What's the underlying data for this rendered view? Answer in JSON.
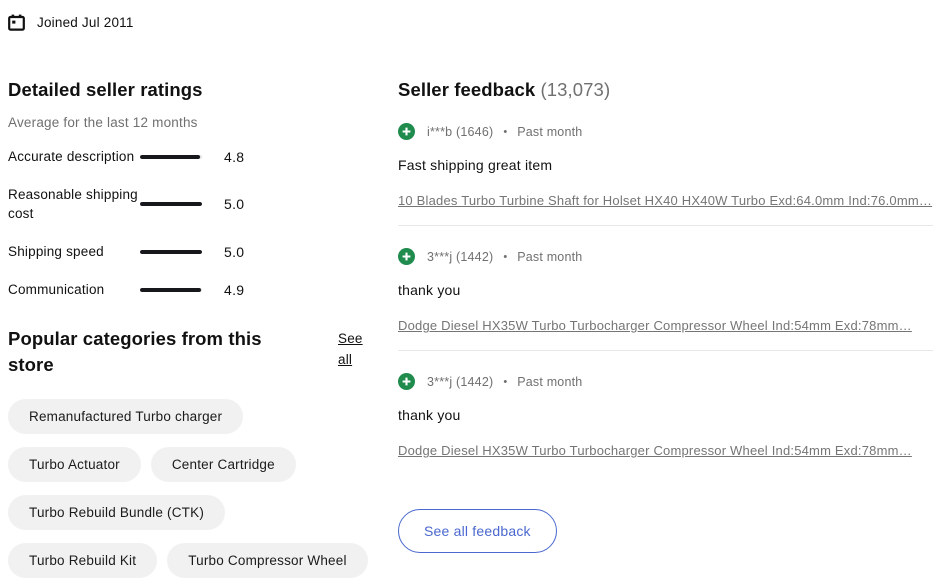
{
  "header": {
    "joined_label": "Joined Jul 2011"
  },
  "seller_ratings": {
    "title": "Detailed seller ratings",
    "subtitle": "Average for the last 12 months",
    "rows": [
      {
        "label": "Accurate description",
        "value": "4.8"
      },
      {
        "label": "Reasonable shipping cost",
        "value": "5.0"
      },
      {
        "label": "Shipping speed",
        "value": "5.0"
      },
      {
        "label": "Communication",
        "value": "4.9"
      }
    ],
    "scale_max": 5
  },
  "categories": {
    "title": "Popular categories from this store",
    "see_all_label": "See all",
    "pills": [
      "Remanufactured Turbo charger",
      "Turbo Actuator",
      "Center Cartridge",
      "Turbo Rebuild Bundle (CTK)",
      "Turbo Rebuild Kit",
      "Turbo Compressor Wheel"
    ]
  },
  "feedback": {
    "title": "Seller feedback",
    "count": "(13,073)",
    "items": [
      {
        "user": "i***b (1646)",
        "separator": "•",
        "period": "Past month",
        "comment": "Fast shipping great item",
        "item_link": "10 Blades Turbo Turbine Shaft for Holset HX40 HX40W Turbo Exd:64.0mm Ind:76.0mm…"
      },
      {
        "user": "3***j (1442)",
        "separator": "•",
        "period": "Past month",
        "comment": "thank you",
        "item_link": "Dodge Diesel HX35W Turbo Turbocharger Compressor Wheel Ind:54mm Exd:78mm…"
      },
      {
        "user": "3***j (1442)",
        "separator": "•",
        "period": "Past month",
        "comment": "thank you",
        "item_link": "Dodge Diesel HX35W Turbo Turbocharger Compressor Wheel Ind:54mm Exd:78mm…"
      }
    ],
    "see_all_button": "See all feedback"
  },
  "colors": {
    "positive_green": "#1f8b4d",
    "link_blue": "#4a68cf"
  }
}
